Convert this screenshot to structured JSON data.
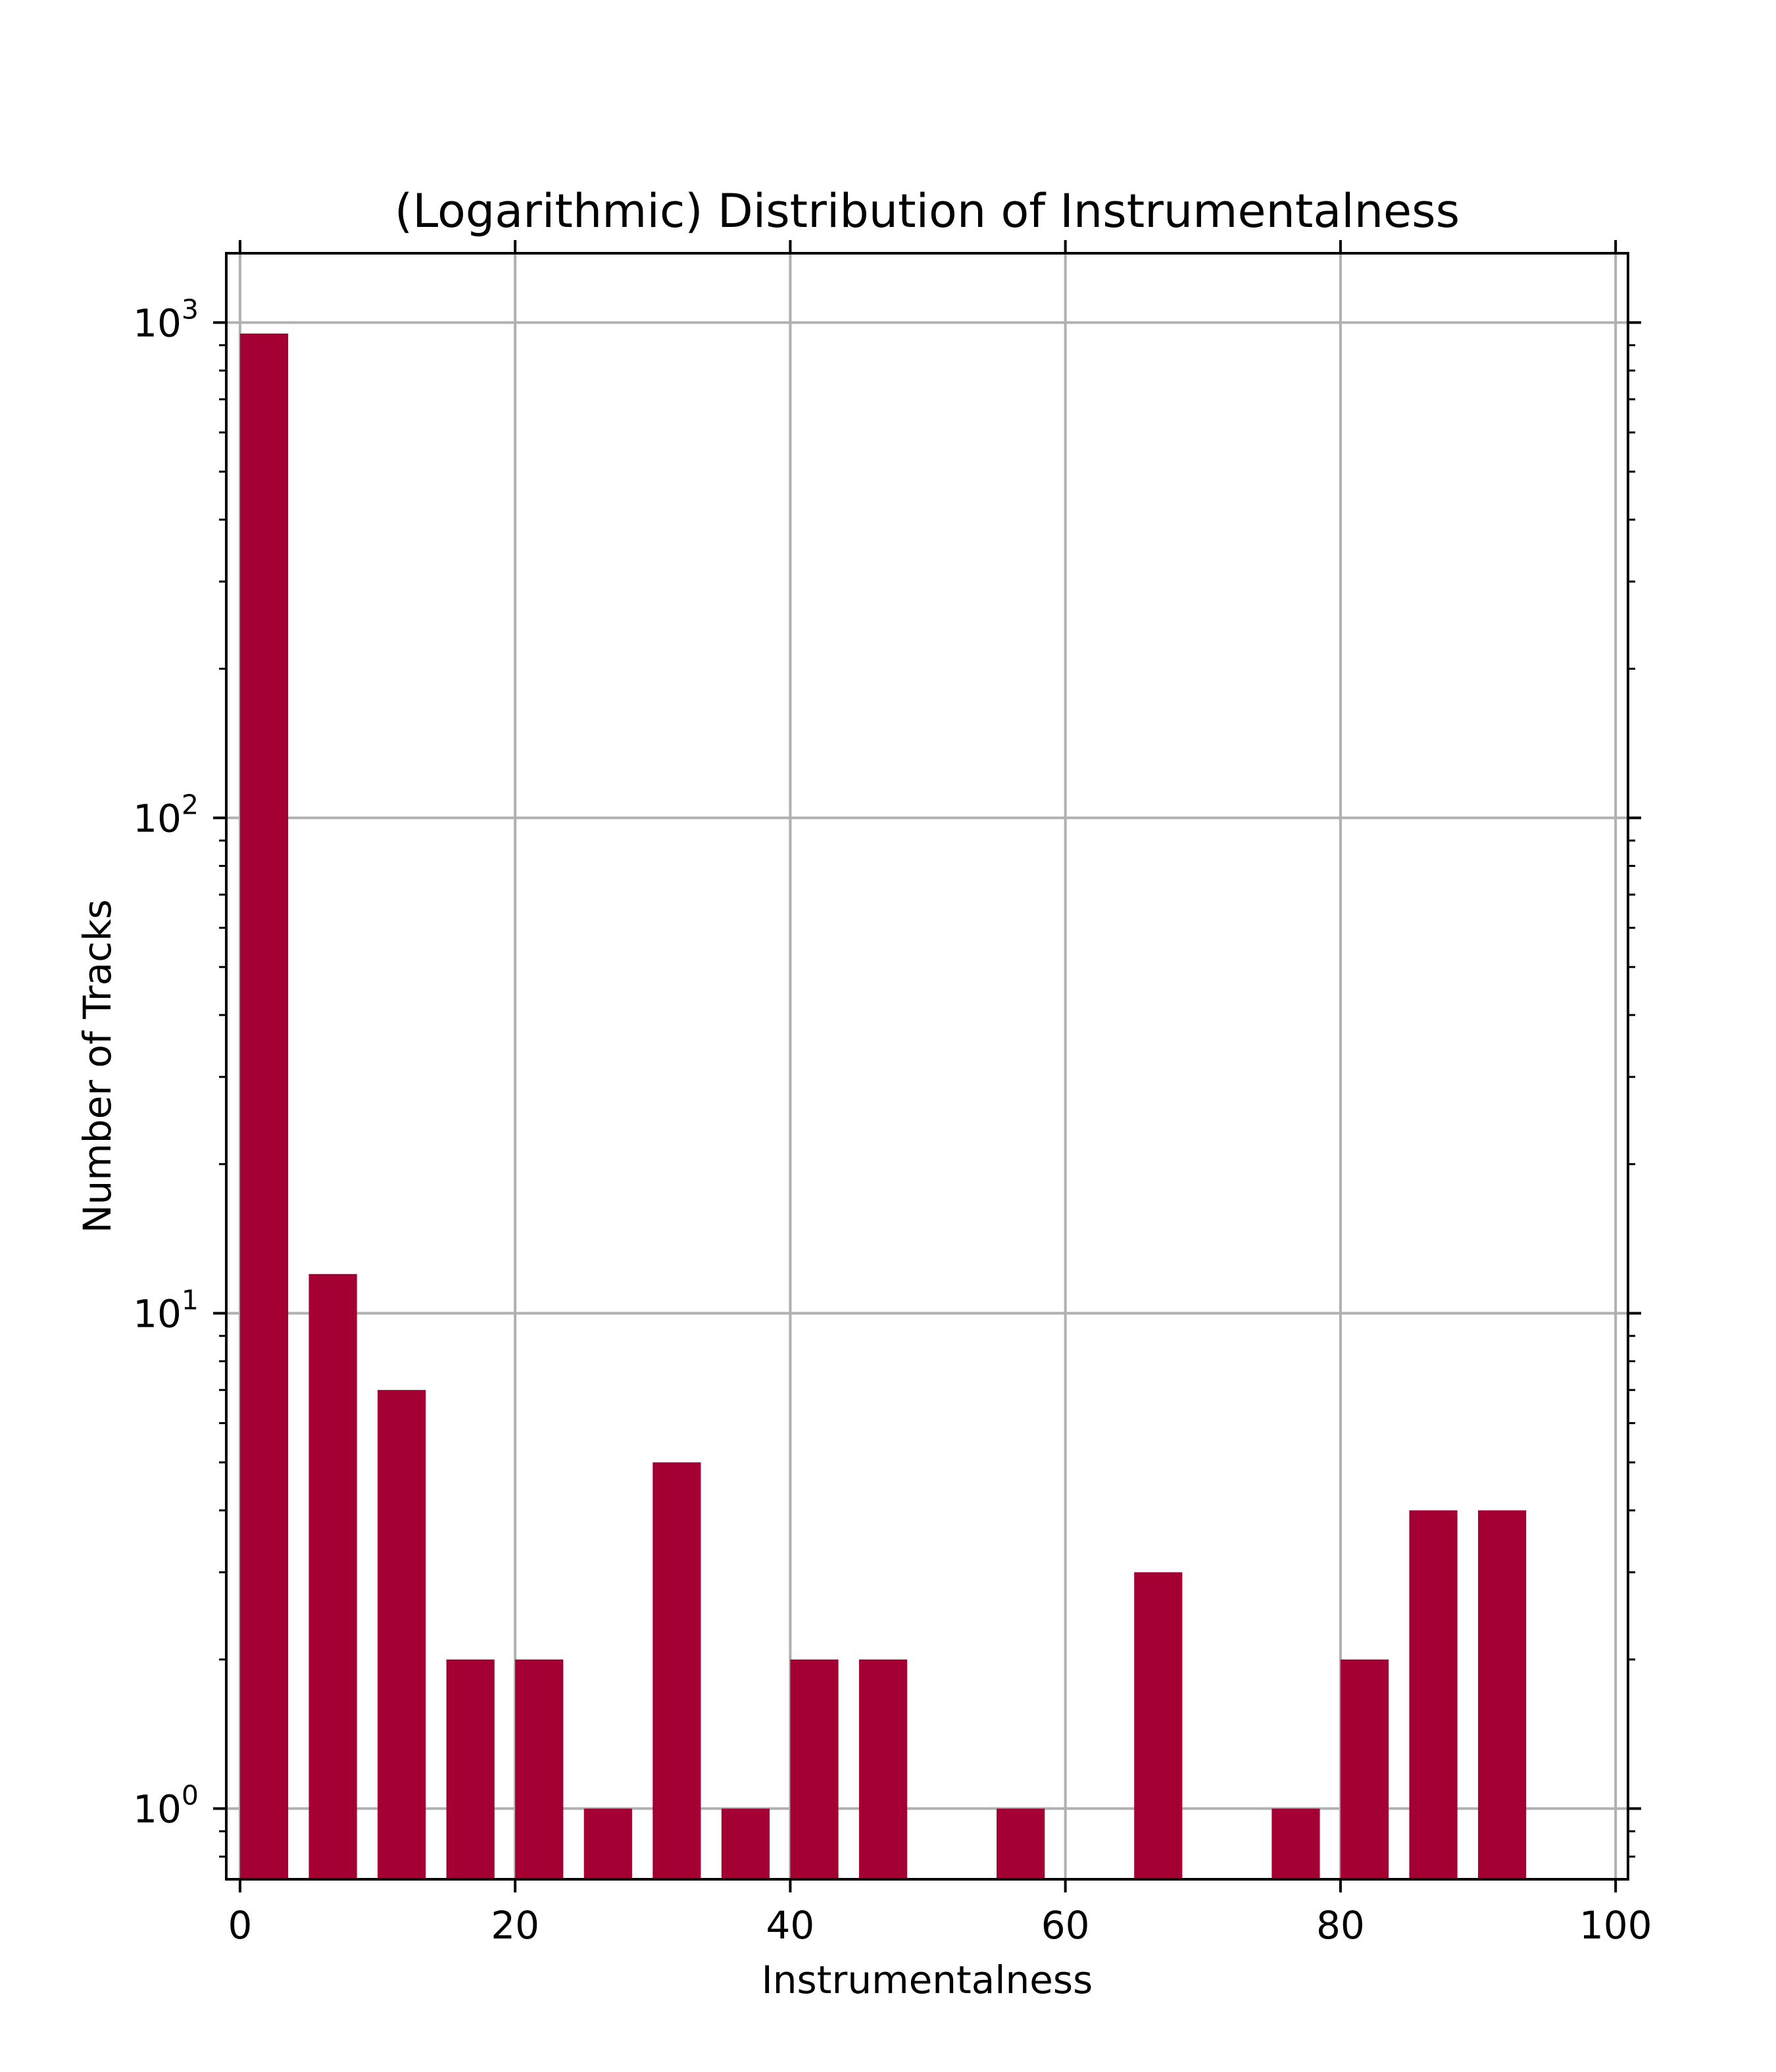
{
  "chart_data": {
    "type": "bar",
    "title": "(Logarithmic) Distribution of Instrumentalness",
    "xlabel": "Instrumentalness",
    "ylabel": "Number of Tracks",
    "yscale": "log",
    "xlim": [
      -1,
      100.9
    ],
    "ylim": [
      0.72,
      1380
    ],
    "grid": true,
    "legend": "none",
    "bar_color": "#a50034",
    "grid_color": "#b0b0b0",
    "x_ticks": [
      0,
      20,
      40,
      60,
      80,
      100
    ],
    "x_tick_labels": [
      "0",
      "20",
      "40",
      "60",
      "80",
      "100"
    ],
    "y_ticks": [
      1,
      10,
      100,
      1000
    ],
    "y_tick_labels": [
      {
        "base": "10",
        "exp": "0"
      },
      {
        "base": "10",
        "exp": "1"
      },
      {
        "base": "10",
        "exp": "2"
      },
      {
        "base": "10",
        "exp": "3"
      }
    ],
    "bin_width": 5,
    "bar_width": 3.5,
    "bins_start": [
      0,
      5,
      10,
      15,
      20,
      25,
      30,
      35,
      40,
      45,
      50,
      55,
      60,
      65,
      70,
      75,
      80,
      85,
      90
    ],
    "values": [
      950,
      12,
      7,
      2,
      2,
      1,
      5,
      1,
      2,
      2,
      0,
      1,
      0,
      3,
      0,
      1,
      2,
      4,
      4
    ]
  }
}
